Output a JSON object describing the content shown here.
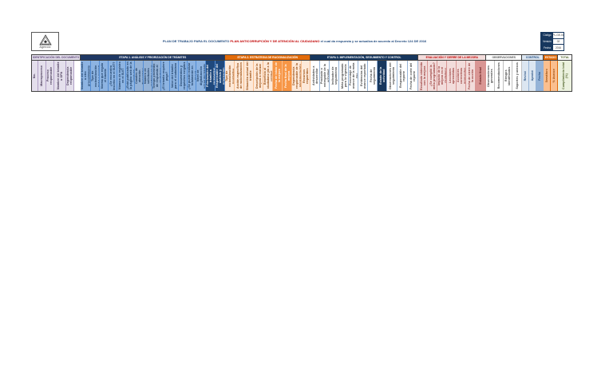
{
  "header": {
    "logo_caption": "Agencia",
    "title_prefix": "PLAN DE TRABAJO PARA EL DOCUMENTO ",
    "title_highlight": "PLAN ANTICORRUPCIÓN Y DE ATENCIÓN AL CIUDADANO",
    "title_suffix": " el cual da respuesta y se actualiza de acuerdo al Decreto 124 DE 2016",
    "info_box": {
      "rows": [
        {
          "label": "Código",
          "value": "PL-GE-01"
        },
        {
          "label": "Versión",
          "value": "02"
        },
        {
          "label": "Fecha",
          "value": "2016"
        }
      ]
    }
  },
  "table": {
    "groups": [
      {
        "name": "identificacion",
        "label": "IDENTIFICACIÓN DEL DOCUMENTO",
        "band_bg": "#E4DFEC",
        "band_fg": "#60497A",
        "cell_bg": "#E4DFEC",
        "cell_fg": "#403151",
        "border": "#B1A0C7",
        "columns": [
          {
            "label": "No.",
            "w": 8
          },
          {
            "label": "Macroproceso",
            "w": 10
          },
          {
            "label": "Proceso responsable",
            "w": 10
          },
          {
            "label": "Nombre del trámite u OPA",
            "w": 15
          },
          {
            "label": "Dependencia responsable",
            "w": 10
          }
        ]
      },
      {
        "name": "analisis",
        "label": "ETAPA 1. ANÁLISIS Y PRIORIZACIÓN DE TRÁMITES",
        "band_bg": "#1F3864",
        "band_fg": "#FFFFFF",
        "cell_bg": "#8DB4E2",
        "cell_fg": "#17375E",
        "border": "#538DD5",
        "columns": [
          {
            "label": "Nombre del trámite u otro procedimiento administrativo",
            "w": 13
          },
          {
            "label": "Tipo de racionalización (total o parcial)",
            "w": 11
          },
          {
            "label": "Norma que regula el trámite",
            "w": 11
          },
          {
            "label": "¿Se encuentra inscrito en el SUIT?",
            "w": 11
          },
          {
            "label": "Número de registro en el SUIT",
            "w": 11
          },
          {
            "label": "¿Está publicado en la página web de la entidad?",
            "w": 11
          },
          {
            "label": "Canales de atención disponibles",
            "w": 11,
            "bg": "#95B3D7"
          },
          {
            "label": "Número de solicitudes recibidas en el último año",
            "w": 11,
            "bg": "#95B3D7"
          },
          {
            "label": "Tiempo promedio de respuesta al ciudadano",
            "w": 11,
            "bg": "#95B3D7"
          },
          {
            "label": "¿El trámite requiere pago?",
            "w": 11
          },
          {
            "label": "Valor del trámite para el ciudadano",
            "w": 11
          },
          {
            "label": "Documentos y requisitos exigidos",
            "w": 11
          },
          {
            "label": "¿Se puede realizar totalmente en línea?",
            "w": 11
          },
          {
            "label": "Nivel de digitalización actual del trámite",
            "w": 12
          },
          {
            "label": "Priorización del trámite a racionalizar",
            "w": 12,
            "bg": "#1F497D",
            "fg": "#FFFFFF"
          },
          {
            "label": "Responsable del análisis y priorización",
            "w": 12,
            "bg": "#1F497D",
            "fg": "#FFFFFF"
          }
        ]
      },
      {
        "name": "estrategia",
        "label": "ETAPA 2. ESTRATEGIA DE RACIONALIZACIÓN",
        "band_bg": "#E26B0A",
        "band_fg": "#FFFFFF",
        "cell_bg": "#FDE9D9",
        "cell_fg": "#974706",
        "border": "#FABF8F",
        "columns": [
          {
            "label": "Tipo de racionalización (normativa, administrativa o tecnológica)",
            "w": 12
          },
          {
            "label": "Acción específica de racionalización",
            "w": 12
          },
          {
            "label": "Situación actual del trámite",
            "w": 12
          },
          {
            "label": "Descripción de la mejora a realizar",
            "w": 12
          },
          {
            "label": "Beneficio al ciudadano y/o a la entidad",
            "w": 12
          },
          {
            "label": "Fecha de inicio de la mejora",
            "w": 12,
            "bg": "#F79646",
            "fg": "#FFFFFF"
          },
          {
            "label": "Fecha final de la mejora",
            "w": 12,
            "bg": "#F79646",
            "fg": "#FFFFFF"
          },
          {
            "label": "Dependencia responsable de la implementación",
            "w": 12
          },
          {
            "label": "Recursos requeridos",
            "w": 11
          }
        ]
      },
      {
        "name": "implementacion",
        "label": "ETAPA 3. IMPLEMENTACIÓN, SEGUIMIENTO Y CONTROL",
        "band_bg": "#17375E",
        "band_fg": "#FFFFFF",
        "cell_bg": "#FFFFFF",
        "cell_fg": "#404040",
        "border": "#95B3D7",
        "columns": [
          {
            "label": "Actividades a desarrollar",
            "w": 12
          },
          {
            "label": "Producto o entregable de la actividad",
            "w": 12
          },
          {
            "label": "Indicador de seguimiento",
            "w": 12
          },
          {
            "label": "Meta programada para la vigencia",
            "w": 12
          },
          {
            "label": "Porcentaje de avance de la meta (%)",
            "w": 12
          },
          {
            "label": "Evidencias del avance reportado",
            "w": 12
          },
          {
            "label": "Fecha de seguimiento",
            "w": 12
          },
          {
            "label": "Estado de la actividad",
            "w": 12,
            "bg": "#17375E",
            "fg": "#FFFFFF"
          },
          {
            "label": "Observaciones del seguimiento",
            "w": 13
          },
          {
            "label": "Responsable del reporte",
            "w": 13
          },
          {
            "label": "Fecha de corte del reporte",
            "w": 13
          }
        ]
      },
      {
        "name": "evaluacion",
        "label": "EVALUACIÓN Y CIERRE DE LA MEJORA",
        "band_bg": "#F2DCDB",
        "band_fg": "#C00000",
        "cell_bg": "#F2DCDB",
        "cell_fg": "#963634",
        "border": "#D99694",
        "columns": [
          {
            "label": "Resultado obtenido con la mejora",
            "w": 12
          },
          {
            "label": "¿Se cumplió la meta programada?",
            "w": 12
          },
          {
            "label": "Impacto de la mejora en el ciudadano",
            "w": 12
          },
          {
            "label": "Lecciones aprendidas",
            "w": 12
          },
          {
            "label": "Acciones correctivas propuestas",
            "w": 12
          },
          {
            "label": "Fecha de cierre de la acción",
            "w": 12
          },
          {
            "label": "Estado final",
            "w": 13,
            "bg": "#D99694",
            "fg": "#631919"
          }
        ]
      },
      {
        "name": "observaciones",
        "label": "OBSERVACIONES",
        "band_bg": "#FFFFFF",
        "band_fg": "#595959",
        "cell_bg": "#FFFFFF",
        "cell_fg": "#404040",
        "border": "#BFBFBF",
        "columns": [
          {
            "label": "Observaciones generales",
            "w": 11
          },
          {
            "label": "Recomendaciones",
            "w": 11
          },
          {
            "label": "Riesgos identificados",
            "w": 11
          },
          {
            "label": "Soportes y anexos",
            "w": 12
          }
        ]
      },
      {
        "name": "control",
        "label": "CONTROL",
        "band_bg": "#DCE6F1",
        "band_fg": "#1F497D",
        "cell_bg": "#DCE6F1",
        "cell_fg": "#1F497D",
        "border": "#95B3D7",
        "columns": [
          {
            "label": "Revisó",
            "w": 9
          },
          {
            "label": "Aprobó",
            "w": 9
          },
          {
            "label": "Fecha",
            "w": 9,
            "bg": "#95B3D7"
          }
        ]
      },
      {
        "name": "estado",
        "label": "ESTADO",
        "band_bg": "#E26B0A",
        "band_fg": "#FFFFFF",
        "cell_bg": "#FABF8F",
        "cell_fg": "#974706",
        "border": "#E26B0A",
        "columns": [
          {
            "label": "Semáforo",
            "w": 9
          },
          {
            "label": "% Avance",
            "w": 9
          }
        ]
      },
      {
        "name": "total",
        "label": "TOTAL",
        "band_bg": "#FFFFFF",
        "band_fg": "#4F6228",
        "cell_bg": "#EBF1DE",
        "cell_fg": "#4F6228",
        "border": "#C4D79B",
        "columns": [
          {
            "label": "Cumplimiento total (%)",
            "w": 17
          }
        ]
      }
    ]
  }
}
